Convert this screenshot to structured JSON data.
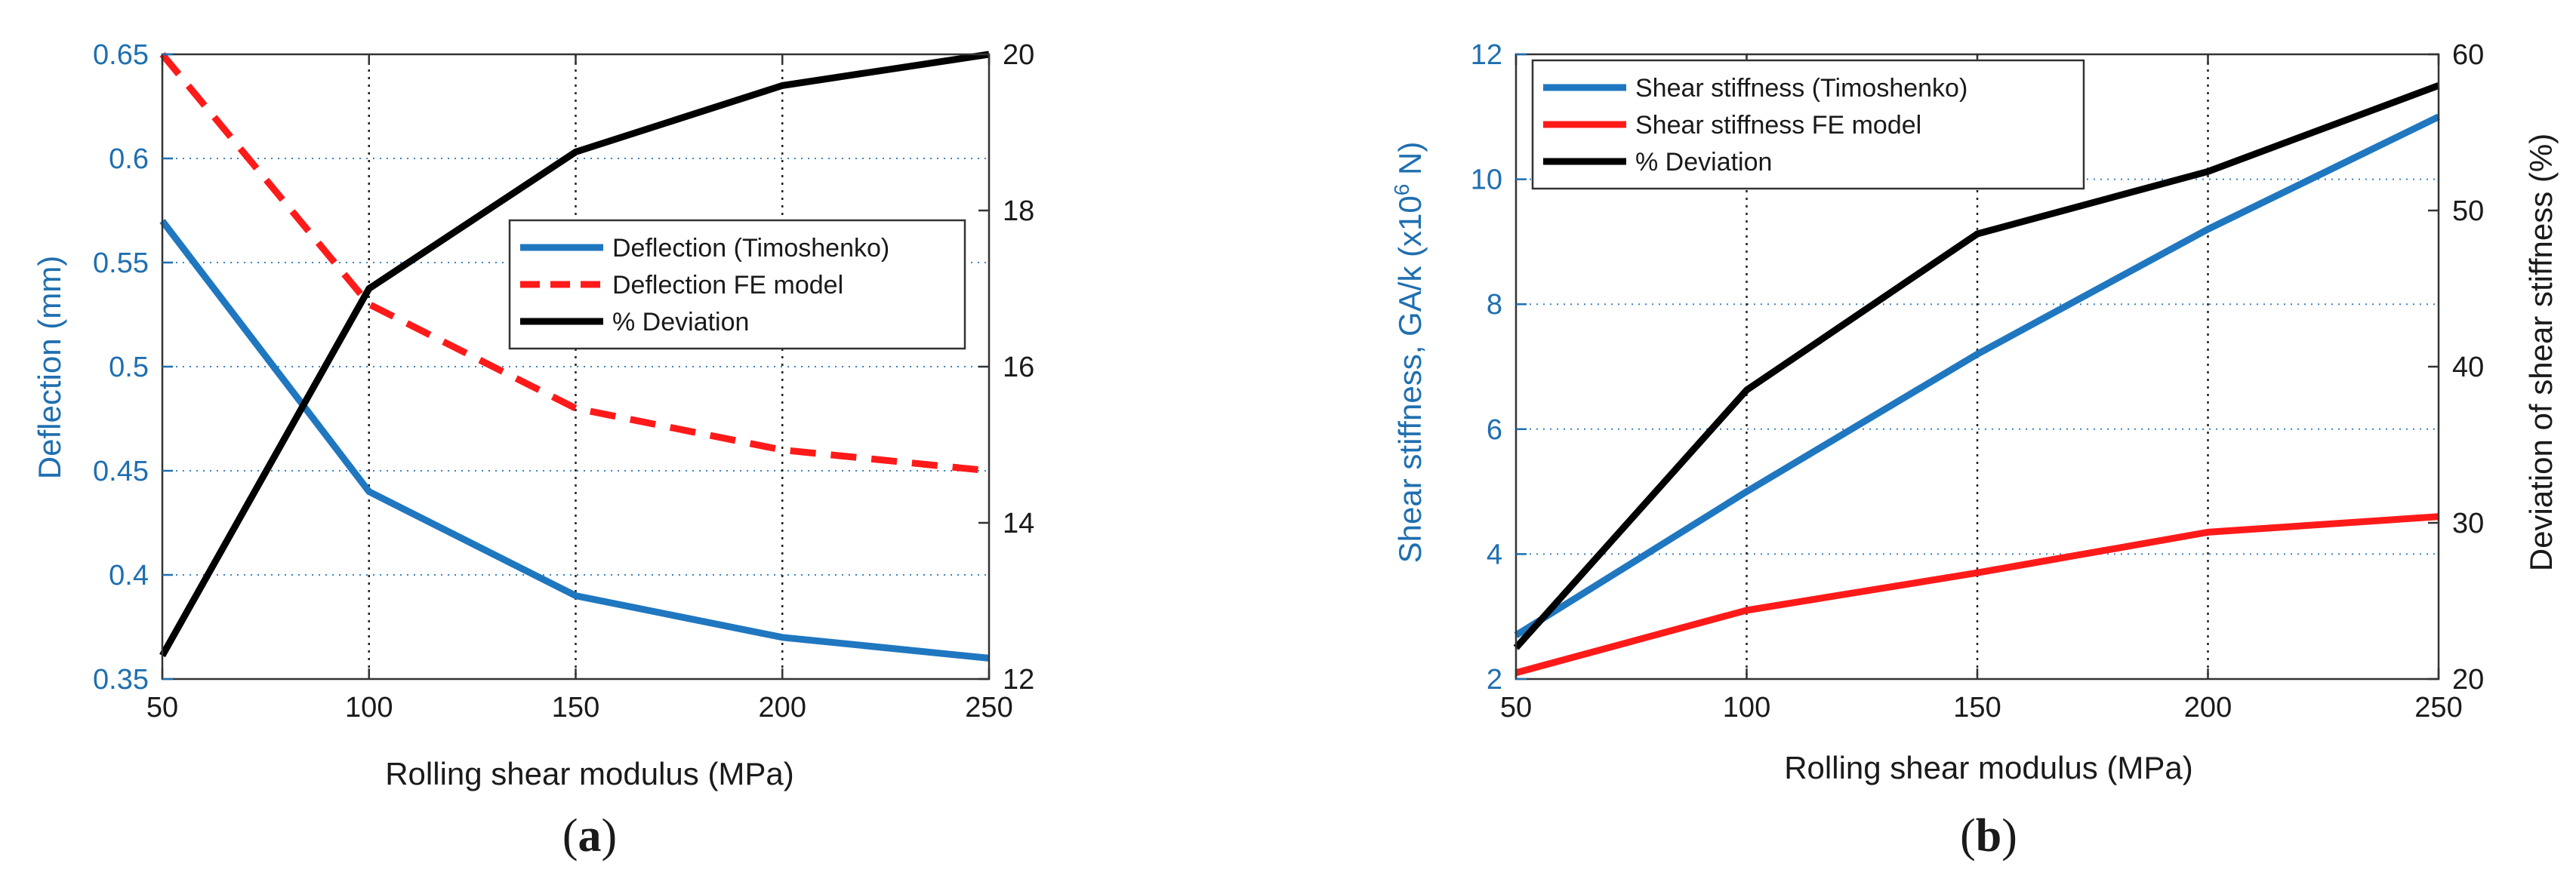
{
  "chart_data": [
    {
      "type": "line",
      "panel": "(a)",
      "panel_letter": "a",
      "x": [
        50,
        100,
        150,
        200,
        250
      ],
      "xlabel": "Rolling shear modulus (MPa)",
      "xlim": [
        50,
        250
      ],
      "xticks": [
        "50",
        "100",
        "150",
        "200",
        "250"
      ],
      "ylabel_left": "Deflection (mm)",
      "ylim_left": [
        0.35,
        0.65
      ],
      "yticks_left": [
        "0.35",
        "0.4",
        "0.45",
        "0.5",
        "0.55",
        "0.6",
        "0.65"
      ],
      "ylim_right": [
        12,
        20
      ],
      "yticks_right": [
        "12",
        "14",
        "16",
        "18",
        "20"
      ],
      "legend_position": "center-right",
      "series": [
        {
          "name": "Deflection (Timoshenko)",
          "axis": "left",
          "color": "#1f77c0",
          "dash": "solid",
          "values": [
            0.57,
            0.44,
            0.39,
            0.37,
            0.36
          ]
        },
        {
          "name": "Deflection FE model",
          "axis": "left",
          "color": "#ff1a1a",
          "dash": "dashed",
          "values": [
            0.65,
            0.53,
            0.48,
            0.46,
            0.45
          ]
        },
        {
          "name": "% Deviation",
          "axis": "right",
          "color": "#000000",
          "dash": "solid",
          "values": [
            12.3,
            17.0,
            18.75,
            19.6,
            20.0
          ]
        }
      ]
    },
    {
      "type": "line",
      "panel": "(b)",
      "panel_letter": "b",
      "x": [
        50,
        100,
        150,
        200,
        250
      ],
      "xlabel": "Rolling shear modulus (MPa)",
      "xlim": [
        50,
        250
      ],
      "xticks": [
        "50",
        "100",
        "150",
        "200",
        "250"
      ],
      "ylabel_left": "Shear stiffness, GA/k (x10",
      "ylabel_left_sup": "6",
      "ylabel_left_end": " N)",
      "ylim_left": [
        2,
        12
      ],
      "yticks_left": [
        "2",
        "4",
        "6",
        "8",
        "10",
        "12"
      ],
      "ylabel_right": "Deviation of shear stiffness (%)",
      "ylim_right": [
        20,
        60
      ],
      "yticks_right": [
        "20",
        "30",
        "40",
        "50",
        "60"
      ],
      "legend_position": "top-left",
      "series": [
        {
          "name": "Shear stiffness (Timoshenko)",
          "axis": "left",
          "color": "#1f77c0",
          "dash": "solid",
          "values": [
            2.7,
            5.0,
            7.2,
            9.2,
            11.0
          ]
        },
        {
          "name": "Shear stiffness FE model",
          "axis": "left",
          "color": "#ff1a1a",
          "dash": "solid",
          "values": [
            2.1,
            3.1,
            3.7,
            4.35,
            4.6
          ]
        },
        {
          "name": "% Deviation",
          "axis": "right",
          "color": "#000000",
          "dash": "solid",
          "values": [
            22.0,
            38.5,
            48.5,
            52.5,
            58.0
          ]
        }
      ]
    }
  ]
}
